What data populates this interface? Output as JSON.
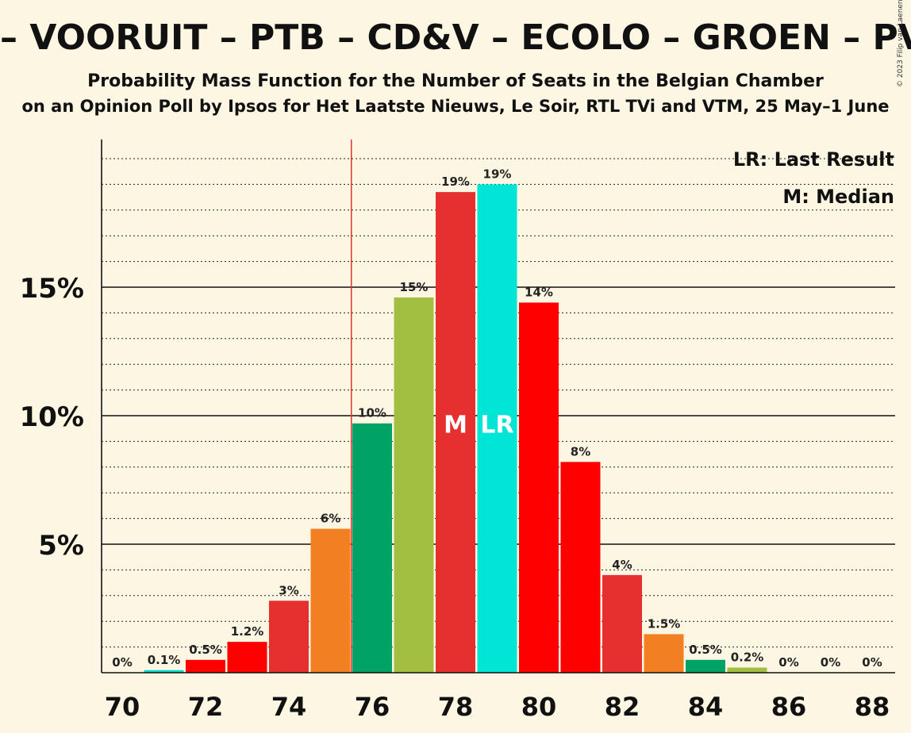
{
  "header": {
    "title": "– VOORUIT – PTB – CD&V – ECOLO – GROEN – PVDA –",
    "subtitle": "Probability Mass Function for the Number of Seats in the Belgian Chamber",
    "subsubtitle": "on an Opinion Poll by Ipsos for Het Laatste Nieuws, Le Soir, RTL TVi and VTM, 25 May–1 June",
    "copyright": "© 2023 Filip van Laenen"
  },
  "legend": {
    "last_result": "LR: Last Result",
    "median": "M: Median"
  },
  "chart_data": {
    "type": "bar",
    "categories": [
      70,
      71,
      72,
      73,
      74,
      75,
      76,
      77,
      78,
      79,
      80,
      81,
      82,
      83,
      84,
      85,
      86,
      87,
      88
    ],
    "values": [
      0,
      0.1,
      0.5,
      1.2,
      2.8,
      5.6,
      9.7,
      14.6,
      18.7,
      19.0,
      14.4,
      8.2,
      3.8,
      1.5,
      0.5,
      0.2,
      0,
      0,
      0
    ],
    "labels": [
      "0%",
      "0.1%",
      "0.5%",
      "1.2%",
      "3%",
      "6%",
      "10%",
      "15%",
      "19%",
      "19%",
      "14%",
      "8%",
      "4%",
      "1.5%",
      "0.5%",
      "0.2%",
      "0%",
      "0%",
      "0%"
    ],
    "colors": [
      "#e63030",
      "#00d9d0",
      "#ff0000",
      "#ff0000",
      "#e63030",
      "#f28022",
      "#00a265",
      "#a2bf42",
      "#e63030",
      "#00e5d5",
      "#ff0000",
      "#ff0000",
      "#e63030",
      "#f28022",
      "#00a265",
      "#a2bf42",
      "#e63030",
      "#00e5d5",
      "#ff0000"
    ],
    "x_tick_labels": [
      "70",
      "72",
      "74",
      "76",
      "78",
      "80",
      "82",
      "84",
      "86",
      "88"
    ],
    "y_ticks": [
      5,
      10,
      15
    ],
    "y_tick_labels": [
      "5%",
      "10%",
      "15%"
    ],
    "ylim": [
      0,
      20.5
    ],
    "median_seat": 78,
    "median_label": "M",
    "last_result_seat": 79,
    "last_result_label": "LR",
    "majority_line_seat": 75.5,
    "grid": true,
    "legend_position": "top-right"
  }
}
